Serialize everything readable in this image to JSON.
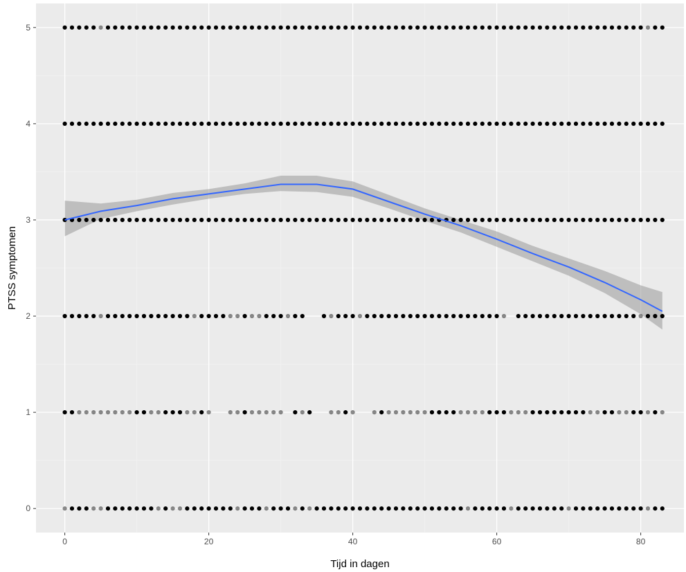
{
  "chart_data": {
    "type": "scatter",
    "title": "",
    "xlabel": "Tijd in dagen",
    "ylabel": "PTSS symptomen",
    "xlim": [
      -4,
      86
    ],
    "ylim": [
      -0.25,
      5.25
    ],
    "x_ticks": [
      0,
      20,
      40,
      60,
      80
    ],
    "y_ticks": [
      0,
      1,
      2,
      3,
      4,
      5
    ],
    "x_ticks_labels": [
      "0",
      "20",
      "40",
      "60",
      "80"
    ],
    "y_ticks_labels": [
      "0",
      "1",
      "2",
      "3",
      "4",
      "5"
    ],
    "grid": true,
    "legend": "none",
    "colors": {
      "panel": "#ebebeb",
      "grid_major": "#ffffff",
      "grid_minor": "#f3f3f3",
      "point": "#000000",
      "smooth_line": "#3366ff",
      "ribbon": "#999999"
    },
    "point_rows": [
      {
        "y": 5,
        "x_from": 0,
        "x_to": 83,
        "missing": [],
        "light": [
          5,
          81
        ]
      },
      {
        "y": 4,
        "x_from": 0,
        "x_to": 83,
        "missing": [],
        "light": []
      },
      {
        "y": 3,
        "x_from": 0,
        "x_to": 83,
        "missing": [],
        "light": []
      },
      {
        "y": 2,
        "x_from": 0,
        "x_to": 83,
        "missing": [
          34,
          35,
          62
        ],
        "light": [
          5,
          18,
          23,
          24,
          26,
          27,
          31,
          37,
          41,
          61,
          80
        ]
      },
      {
        "y": 1,
        "x_from": 0,
        "x_to": 83,
        "missing": [
          21,
          22,
          31,
          35,
          36,
          41,
          42
        ],
        "light": [
          2,
          3,
          4,
          5,
          6,
          7,
          8,
          9,
          12,
          13,
          17,
          18,
          20,
          23,
          24,
          26,
          27,
          28,
          29,
          30,
          33,
          37,
          38,
          40,
          43,
          45,
          46,
          47,
          48,
          49,
          50,
          55,
          56,
          57,
          58,
          62,
          63,
          64,
          73,
          74,
          77,
          78,
          81,
          83
        ]
      },
      {
        "y": 0,
        "x_from": 0,
        "x_to": 83,
        "missing": [],
        "light": [
          0,
          4,
          5,
          13,
          15,
          16,
          24,
          28,
          32,
          34,
          56,
          62,
          70,
          81
        ]
      }
    ],
    "smooth": {
      "x": [
        0,
        5,
        10,
        15,
        20,
        25,
        30,
        35,
        40,
        45,
        50,
        55,
        60,
        65,
        70,
        75,
        80,
        83
      ],
      "y": [
        3.0,
        3.09,
        3.15,
        3.22,
        3.27,
        3.32,
        3.37,
        3.37,
        3.32,
        3.19,
        3.06,
        2.94,
        2.8,
        2.65,
        2.51,
        2.35,
        2.17,
        2.05
      ],
      "lower": [
        2.83,
        3.01,
        3.09,
        3.16,
        3.22,
        3.27,
        3.3,
        3.29,
        3.24,
        3.12,
        2.99,
        2.87,
        2.72,
        2.57,
        2.42,
        2.24,
        2.02,
        1.86
      ],
      "upper": [
        3.2,
        3.17,
        3.21,
        3.28,
        3.32,
        3.38,
        3.46,
        3.46,
        3.4,
        3.26,
        3.12,
        3.0,
        2.88,
        2.73,
        2.6,
        2.47,
        2.32,
        2.25
      ]
    }
  }
}
